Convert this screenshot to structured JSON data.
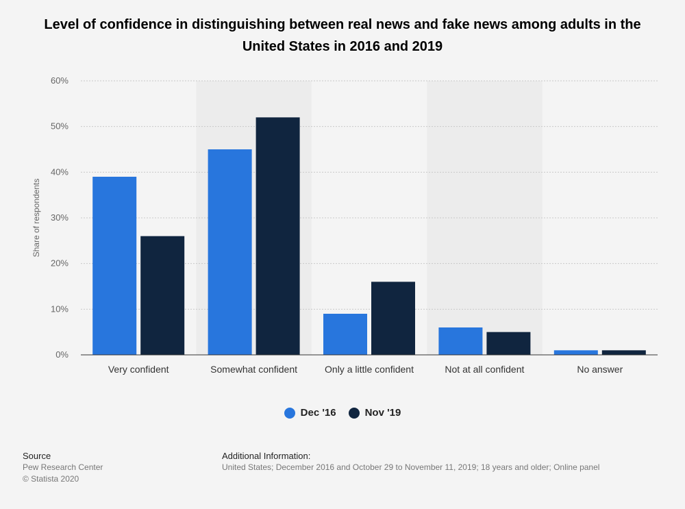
{
  "title": "Level of confidence in distinguishing between real news and fake news among adults in the United States in 2016 and 2019",
  "colors": {
    "series_0": "#2876dd",
    "series_1": "#10253f",
    "band": "#ececec",
    "grid": "#c8c8c8"
  },
  "chart_data": {
    "type": "bar",
    "categories": [
      "Very confident",
      "Somewhat confident",
      "Only a little confident",
      "Not at all confident",
      "No answer"
    ],
    "series": [
      {
        "name": "Dec '16",
        "values": [
          39,
          45,
          9,
          6,
          1
        ]
      },
      {
        "name": "Nov '19",
        "values": [
          26,
          52,
          16,
          5,
          1
        ]
      }
    ],
    "ylabel": "Share of respondents",
    "ylim": [
      0,
      60
    ],
    "yticks": [
      "0%",
      "10%",
      "20%",
      "30%",
      "40%",
      "50%",
      "60%"
    ],
    "grid": true,
    "legend": "bottom-center"
  },
  "footer": {
    "source_head": "Source",
    "source_line1": "Pew Research Center",
    "source_line2": "© Statista 2020",
    "info_head": "Additional Information:",
    "info_text": "United States; December 2016 and October 29 to November 11, 2019; 18 years and older; Online panel"
  }
}
